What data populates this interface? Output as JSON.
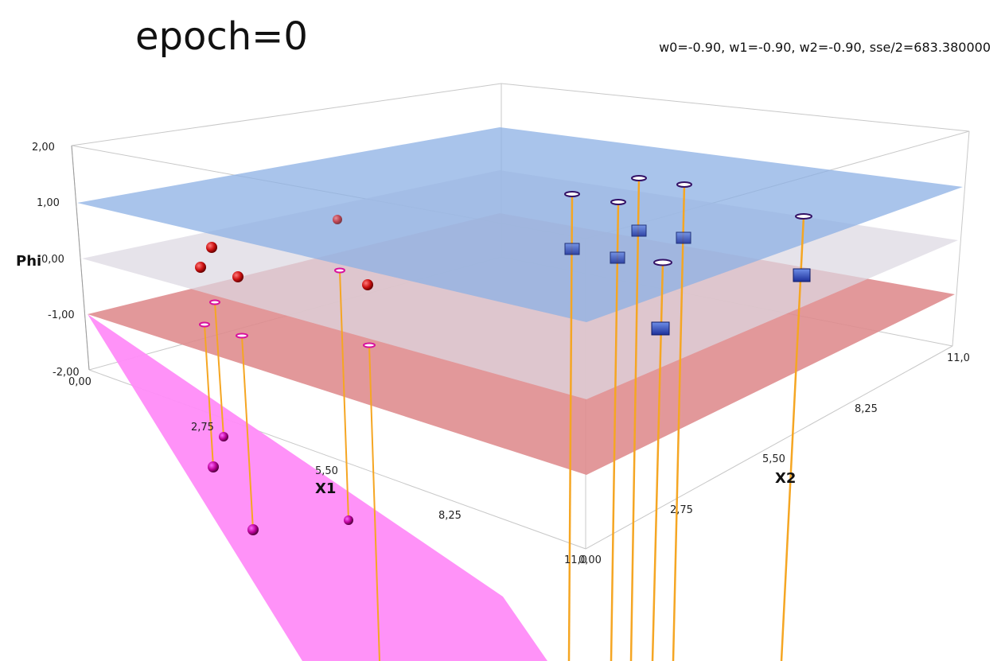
{
  "title": "epoch=0",
  "weights_label": "w0=-0.90, w1=-0.90, w2=-0.90, sse/2=683.380000",
  "axes": {
    "phi": {
      "title": "Phi",
      "ticks": [
        "2,00",
        "1,00",
        "0,00",
        "-1,00",
        "-2,00"
      ]
    },
    "x1": {
      "title": "X1",
      "ticks": [
        "0,00",
        "2,75",
        "5,50",
        "8,25",
        "11,0"
      ]
    },
    "x2": {
      "title": "X2",
      "ticks": [
        "0,00",
        "2,75",
        "5,50",
        "8,25",
        "11,0"
      ]
    }
  },
  "colors": {
    "plane_plus_one": "#8cb0e4",
    "plane_zero": "#ddd8e2",
    "plane_minus_one": "#de8a8c",
    "decision_plane": "#ff8cf8",
    "class_neg_marker": "#cc1111",
    "class_pos_marker": "#2244bb",
    "residual_line": "#f5a623"
  }
}
